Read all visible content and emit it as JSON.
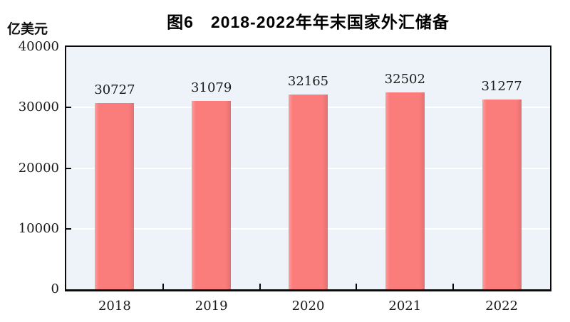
{
  "figure_label": "图6",
  "chart_data": {
    "type": "bar",
    "title": "图6　2018-2022年年末国家外汇储备",
    "categories": [
      "2018",
      "2019",
      "2020",
      "2021",
      "2022"
    ],
    "values": [
      30727,
      31079,
      32165,
      32502,
      31277
    ],
    "data_labels": [
      "30727",
      "31079",
      "32165",
      "32502",
      "31277"
    ],
    "xlabel": "",
    "ylabel": "亿美元",
    "ylim": [
      0,
      40000
    ],
    "yticks": [
      0,
      10000,
      20000,
      30000,
      40000
    ],
    "ytick_labels": [
      "0",
      "10000",
      "20000",
      "30000",
      "40000"
    ],
    "gridlines_at": [
      10000,
      20000,
      30000
    ],
    "grid": true,
    "legend": "none",
    "bar_color": "#fa7d7c",
    "plot_background": "#edf3f8",
    "gridline_color": "#ffffff",
    "axis_color": "#0a0a0a"
  }
}
